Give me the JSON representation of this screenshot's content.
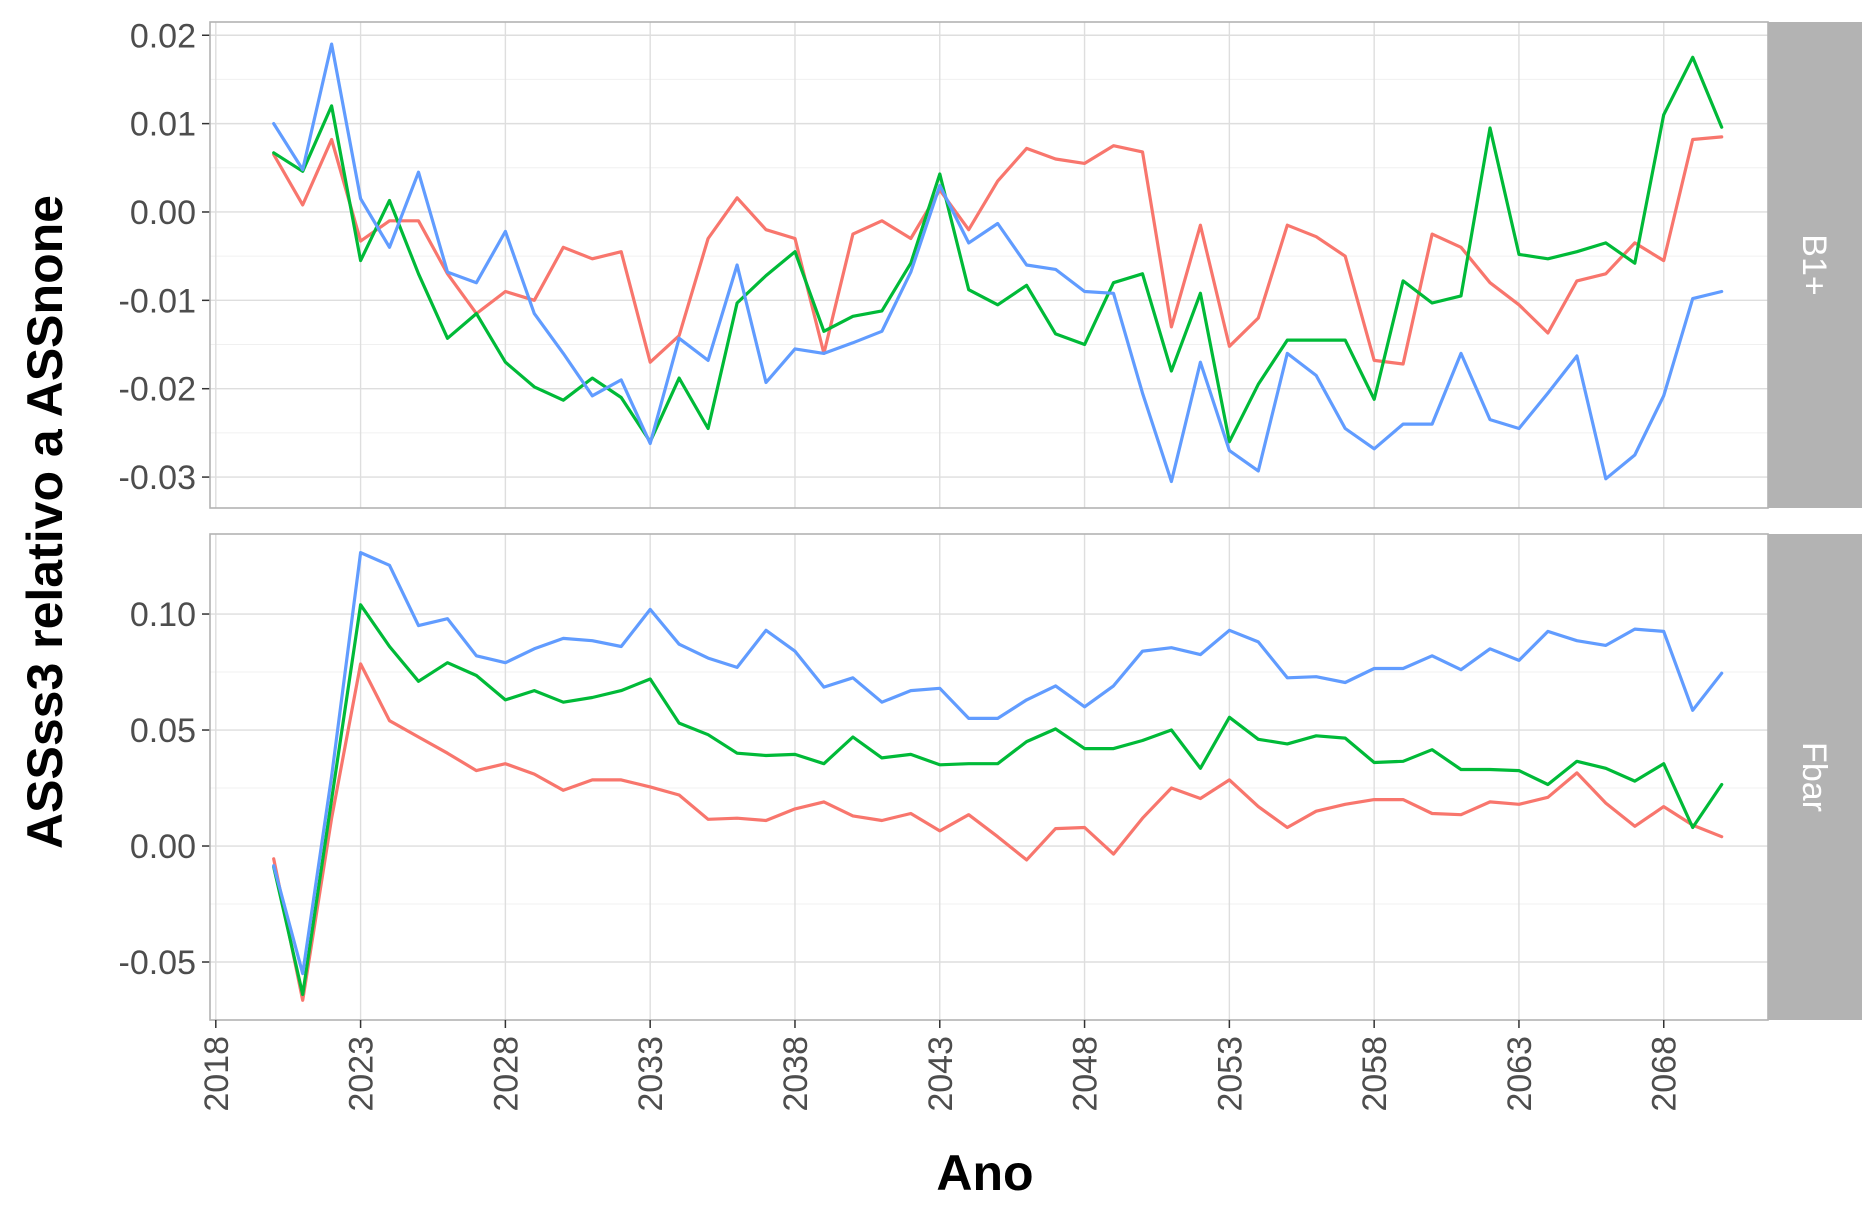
{
  "chart_data": {
    "type": "line",
    "xlabel": "Ano",
    "ylabel": "ASSss3 relativo a ASSnone",
    "x_ticks": [
      "2018",
      "2023",
      "2028",
      "2033",
      "2038",
      "2043",
      "2048",
      "2053",
      "2058",
      "2063",
      "2068"
    ],
    "x_tick_values": [
      2018,
      2023,
      2028,
      2033,
      2038,
      2043,
      2048,
      2053,
      2058,
      2063,
      2068
    ],
    "xlim": [
      2017.8,
      2071.6
    ],
    "grid": true,
    "legend": "none",
    "colors": [
      "#F8766D",
      "#00BA38",
      "#619CFF"
    ],
    "x": [
      2020,
      2021,
      2022,
      2023,
      2024,
      2025,
      2026,
      2027,
      2028,
      2029,
      2030,
      2031,
      2032,
      2033,
      2034,
      2035,
      2036,
      2037,
      2038,
      2039,
      2040,
      2041,
      2042,
      2043,
      2044,
      2045,
      2046,
      2047,
      2048,
      2049,
      2050,
      2051,
      2052,
      2053,
      2054,
      2055,
      2056,
      2057,
      2058,
      2059,
      2060,
      2061,
      2062,
      2063,
      2064,
      2065,
      2066,
      2067,
      2068,
      2069,
      2070
    ],
    "panels": [
      {
        "strip": "B1+",
        "ylim": [
          -0.0335,
          0.0215
        ],
        "y_ticks": [
          "0.02",
          "0.01",
          "0.00",
          "-0.01",
          "-0.02",
          "-0.03"
        ],
        "y_tick_values": [
          0.02,
          0.01,
          0.0,
          -0.01,
          -0.02,
          -0.03
        ],
        "series": [
          {
            "values": [
              0.0065,
              0.0008,
              0.0082,
              -0.0033,
              -0.001,
              -0.001,
              -0.007,
              -0.0115,
              -0.009,
              -0.01,
              -0.004,
              -0.0053,
              -0.0045,
              -0.017,
              -0.014,
              -0.003,
              0.0016,
              -0.002,
              -0.003,
              -0.016,
              -0.0025,
              -0.001,
              -0.003,
              0.0025,
              -0.002,
              0.0035,
              0.0072,
              0.006,
              0.0055,
              0.0075,
              0.0068,
              -0.013,
              -0.0015,
              -0.0152,
              -0.012,
              -0.0015,
              -0.0028,
              -0.005,
              -0.0168,
              -0.0172,
              -0.0025,
              -0.004,
              -0.008,
              -0.0105,
              -0.0137,
              -0.0078,
              -0.007,
              -0.0035,
              -0.0055,
              0.0082,
              0.0085
            ]
          },
          {
            "values": [
              0.0067,
              0.0046,
              0.012,
              -0.0055,
              0.0013,
              -0.007,
              -0.0143,
              -0.0115,
              -0.017,
              -0.0198,
              -0.0213,
              -0.0188,
              -0.021,
              -0.026,
              -0.0188,
              -0.0245,
              -0.0103,
              -0.0072,
              -0.0045,
              -0.0135,
              -0.0118,
              -0.0112,
              -0.0058,
              0.0043,
              -0.0088,
              -0.0105,
              -0.0083,
              -0.0138,
              -0.015,
              -0.008,
              -0.007,
              -0.018,
              -0.0092,
              -0.026,
              -0.0195,
              -0.0145,
              -0.0145,
              -0.0145,
              -0.0212,
              -0.0078,
              -0.0103,
              -0.0095,
              0.0095,
              -0.0048,
              -0.0053,
              -0.0045,
              -0.0035,
              -0.0058,
              0.011,
              0.0175,
              0.0096
            ]
          },
          {
            "values": [
              0.01,
              0.0048,
              0.019,
              0.0015,
              -0.004,
              0.0045,
              -0.0068,
              -0.008,
              -0.0022,
              -0.0115,
              -0.016,
              -0.0208,
              -0.019,
              -0.0262,
              -0.0143,
              -0.0168,
              -0.006,
              -0.0193,
              -0.0155,
              -0.016,
              -0.0148,
              -0.0135,
              -0.0068,
              0.003,
              -0.0035,
              -0.0013,
              -0.006,
              -0.0065,
              -0.009,
              -0.0092,
              -0.0205,
              -0.0305,
              -0.017,
              -0.027,
              -0.0293,
              -0.016,
              -0.0185,
              -0.0245,
              -0.0268,
              -0.024,
              -0.024,
              -0.016,
              -0.0235,
              -0.0245,
              -0.0205,
              -0.0163,
              -0.0302,
              -0.0275,
              -0.0208,
              -0.0098,
              -0.009
            ]
          }
        ]
      },
      {
        "strip": "Fbar",
        "ylim": [
          -0.075,
          0.1345
        ],
        "y_ticks": [
          "0.10",
          "0.05",
          "0.00",
          "-0.05"
        ],
        "y_tick_values": [
          0.1,
          0.05,
          0.0,
          -0.05
        ],
        "series": [
          {
            "values": [
              -0.0055,
              -0.0665,
              0.012,
              0.0785,
              0.054,
              0.047,
              0.04,
              0.0325,
              0.0355,
              0.031,
              0.024,
              0.0285,
              0.0285,
              0.0255,
              0.022,
              0.0115,
              0.012,
              0.011,
              0.016,
              0.019,
              0.013,
              0.011,
              0.014,
              0.0065,
              0.0135,
              0.004,
              -0.006,
              0.0075,
              0.008,
              -0.0035,
              0.012,
              0.025,
              0.0205,
              0.0285,
              0.017,
              0.008,
              0.015,
              0.018,
              0.02,
              0.02,
              0.014,
              0.0135,
              0.019,
              0.018,
              0.021,
              0.0315,
              0.0185,
              0.0085,
              0.017,
              0.009,
              0.004
            ]
          },
          {
            "values": [
              -0.009,
              -0.064,
              0.02,
              0.104,
              0.086,
              0.071,
              0.079,
              0.0735,
              0.063,
              0.067,
              0.062,
              0.064,
              0.067,
              0.072,
              0.053,
              0.048,
              0.04,
              0.039,
              0.0395,
              0.0355,
              0.047,
              0.038,
              0.0395,
              0.035,
              0.0355,
              0.0355,
              0.045,
              0.0505,
              0.042,
              0.042,
              0.0455,
              0.05,
              0.0335,
              0.0555,
              0.046,
              0.044,
              0.0475,
              0.0465,
              0.036,
              0.0365,
              0.0415,
              0.033,
              0.033,
              0.0325,
              0.0265,
              0.0365,
              0.0335,
              0.028,
              0.0355,
              0.008,
              0.0265
            ]
          },
          {
            "values": [
              -0.0085,
              -0.055,
              0.03,
              0.1265,
              0.121,
              0.095,
              0.098,
              0.082,
              0.079,
              0.085,
              0.0895,
              0.0885,
              0.086,
              0.102,
              0.087,
              0.081,
              0.077,
              0.093,
              0.084,
              0.0685,
              0.0725,
              0.062,
              0.067,
              0.068,
              0.055,
              0.055,
              0.063,
              0.069,
              0.06,
              0.069,
              0.084,
              0.0855,
              0.0825,
              0.093,
              0.088,
              0.0725,
              0.073,
              0.0705,
              0.0765,
              0.0765,
              0.082,
              0.076,
              0.085,
              0.08,
              0.0925,
              0.0885,
              0.0865,
              0.0935,
              0.0925,
              0.0585,
              0.0745
            ]
          }
        ]
      }
    ]
  }
}
